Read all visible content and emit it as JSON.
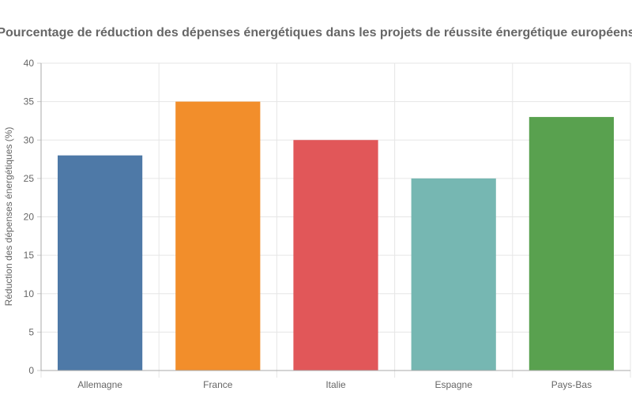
{
  "chart_data": {
    "type": "bar",
    "title": "Pourcentage de réduction des dépenses énergétiques dans les projets de réussite énergétique européens",
    "xlabel": "",
    "ylabel": "Réduction des dépenses énergétiques (%)",
    "categories": [
      "Allemagne",
      "France",
      "Italie",
      "Espagne",
      "Pays-Bas"
    ],
    "values": [
      28,
      35,
      30,
      25,
      33
    ],
    "colors": [
      "#4e79a7",
      "#f28e2b",
      "#e15759",
      "#76b7b2",
      "#59a14f"
    ],
    "ylim": [
      0,
      40
    ],
    "yticks": [
      0,
      5,
      10,
      15,
      20,
      25,
      30,
      35,
      40
    ],
    "grid": true,
    "legend": "none"
  }
}
